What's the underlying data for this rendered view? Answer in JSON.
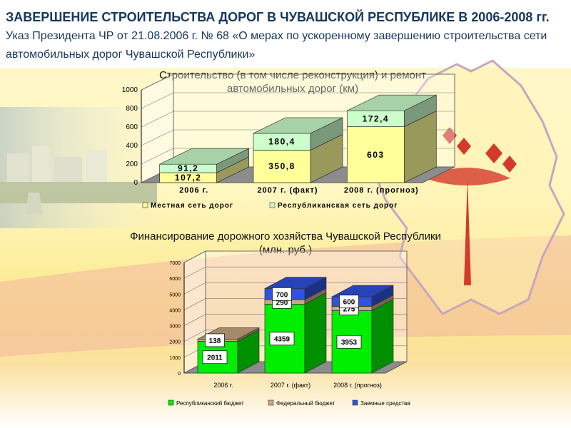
{
  "title": {
    "bold": "ЗАВЕРШЕНИЕ СТРОИТЕЛЬСТВА ДОРОГ В ЧУВАШСКОЙ РЕСПУБЛИКЕ В 2006-2008 гг.",
    "normal": "Указ Президента ЧР от 21.08.2006 г. № 68 «О мерах по ускоренному завершению строительства сети автомобильных дорог Чувашской Республики»"
  },
  "colors": {
    "title": "#17375e",
    "yellow_face": "#ffff99",
    "light_green_face": "#ccffcc",
    "bright_green": "#00ee00",
    "tan": "#c8a882",
    "blue": "#2f52e0"
  },
  "chart_data": [
    {
      "type": "bar",
      "stacked": true,
      "three_d": true,
      "title": "Строительство (в том числе реконструкция) и ремонт автомобильных дорог (км)",
      "categories": [
        "2006 г.",
        "2007 г. (факт)",
        "2008 г. (прогноз)"
      ],
      "series": [
        {
          "name": "Местная сеть дорог",
          "values": [
            107.2,
            350.8,
            603
          ],
          "labels": [
            "107,2",
            "350,8",
            "603"
          ],
          "color": "#ffff99"
        },
        {
          "name": "Республиканская сеть дорог",
          "values": [
            91.2,
            180.4,
            172.4
          ],
          "labels": [
            "91,2",
            "180,4",
            "172,4"
          ],
          "color": "#ccffcc"
        }
      ],
      "y_ticks": [
        "0",
        "200",
        "400",
        "600",
        "800",
        "1000"
      ],
      "ylim": [
        0,
        1000
      ],
      "legend_position": "bottom"
    },
    {
      "type": "bar",
      "stacked": true,
      "three_d": true,
      "title": "Финансирование дорожного хозяйства Чувашской Республики (млн. руб.)",
      "categories": [
        "2006 г.",
        "2007 г. (факт)",
        "2008 г. (прогноз)"
      ],
      "series": [
        {
          "name": "Республиканский бюджет",
          "values": [
            2011,
            4359,
            3953
          ],
          "labels": [
            "2011",
            "4359",
            "3953"
          ],
          "color": "#00ee00"
        },
        {
          "name": "Федеральный бюджет",
          "values": [
            138,
            290,
            275
          ],
          "labels": [
            "138",
            "290",
            "275"
          ],
          "color": "#c8a882"
        },
        {
          "name": "Заемные средства",
          "values": [
            0,
            700,
            600
          ],
          "labels": [
            "",
            "700",
            "600"
          ],
          "color": "#2f52e0"
        }
      ],
      "y_ticks": [
        "0",
        "1000",
        "2000",
        "3000",
        "4000",
        "5000",
        "6000",
        "7000"
      ],
      "ylim": [
        0,
        7000
      ],
      "legend_position": "bottom"
    }
  ]
}
